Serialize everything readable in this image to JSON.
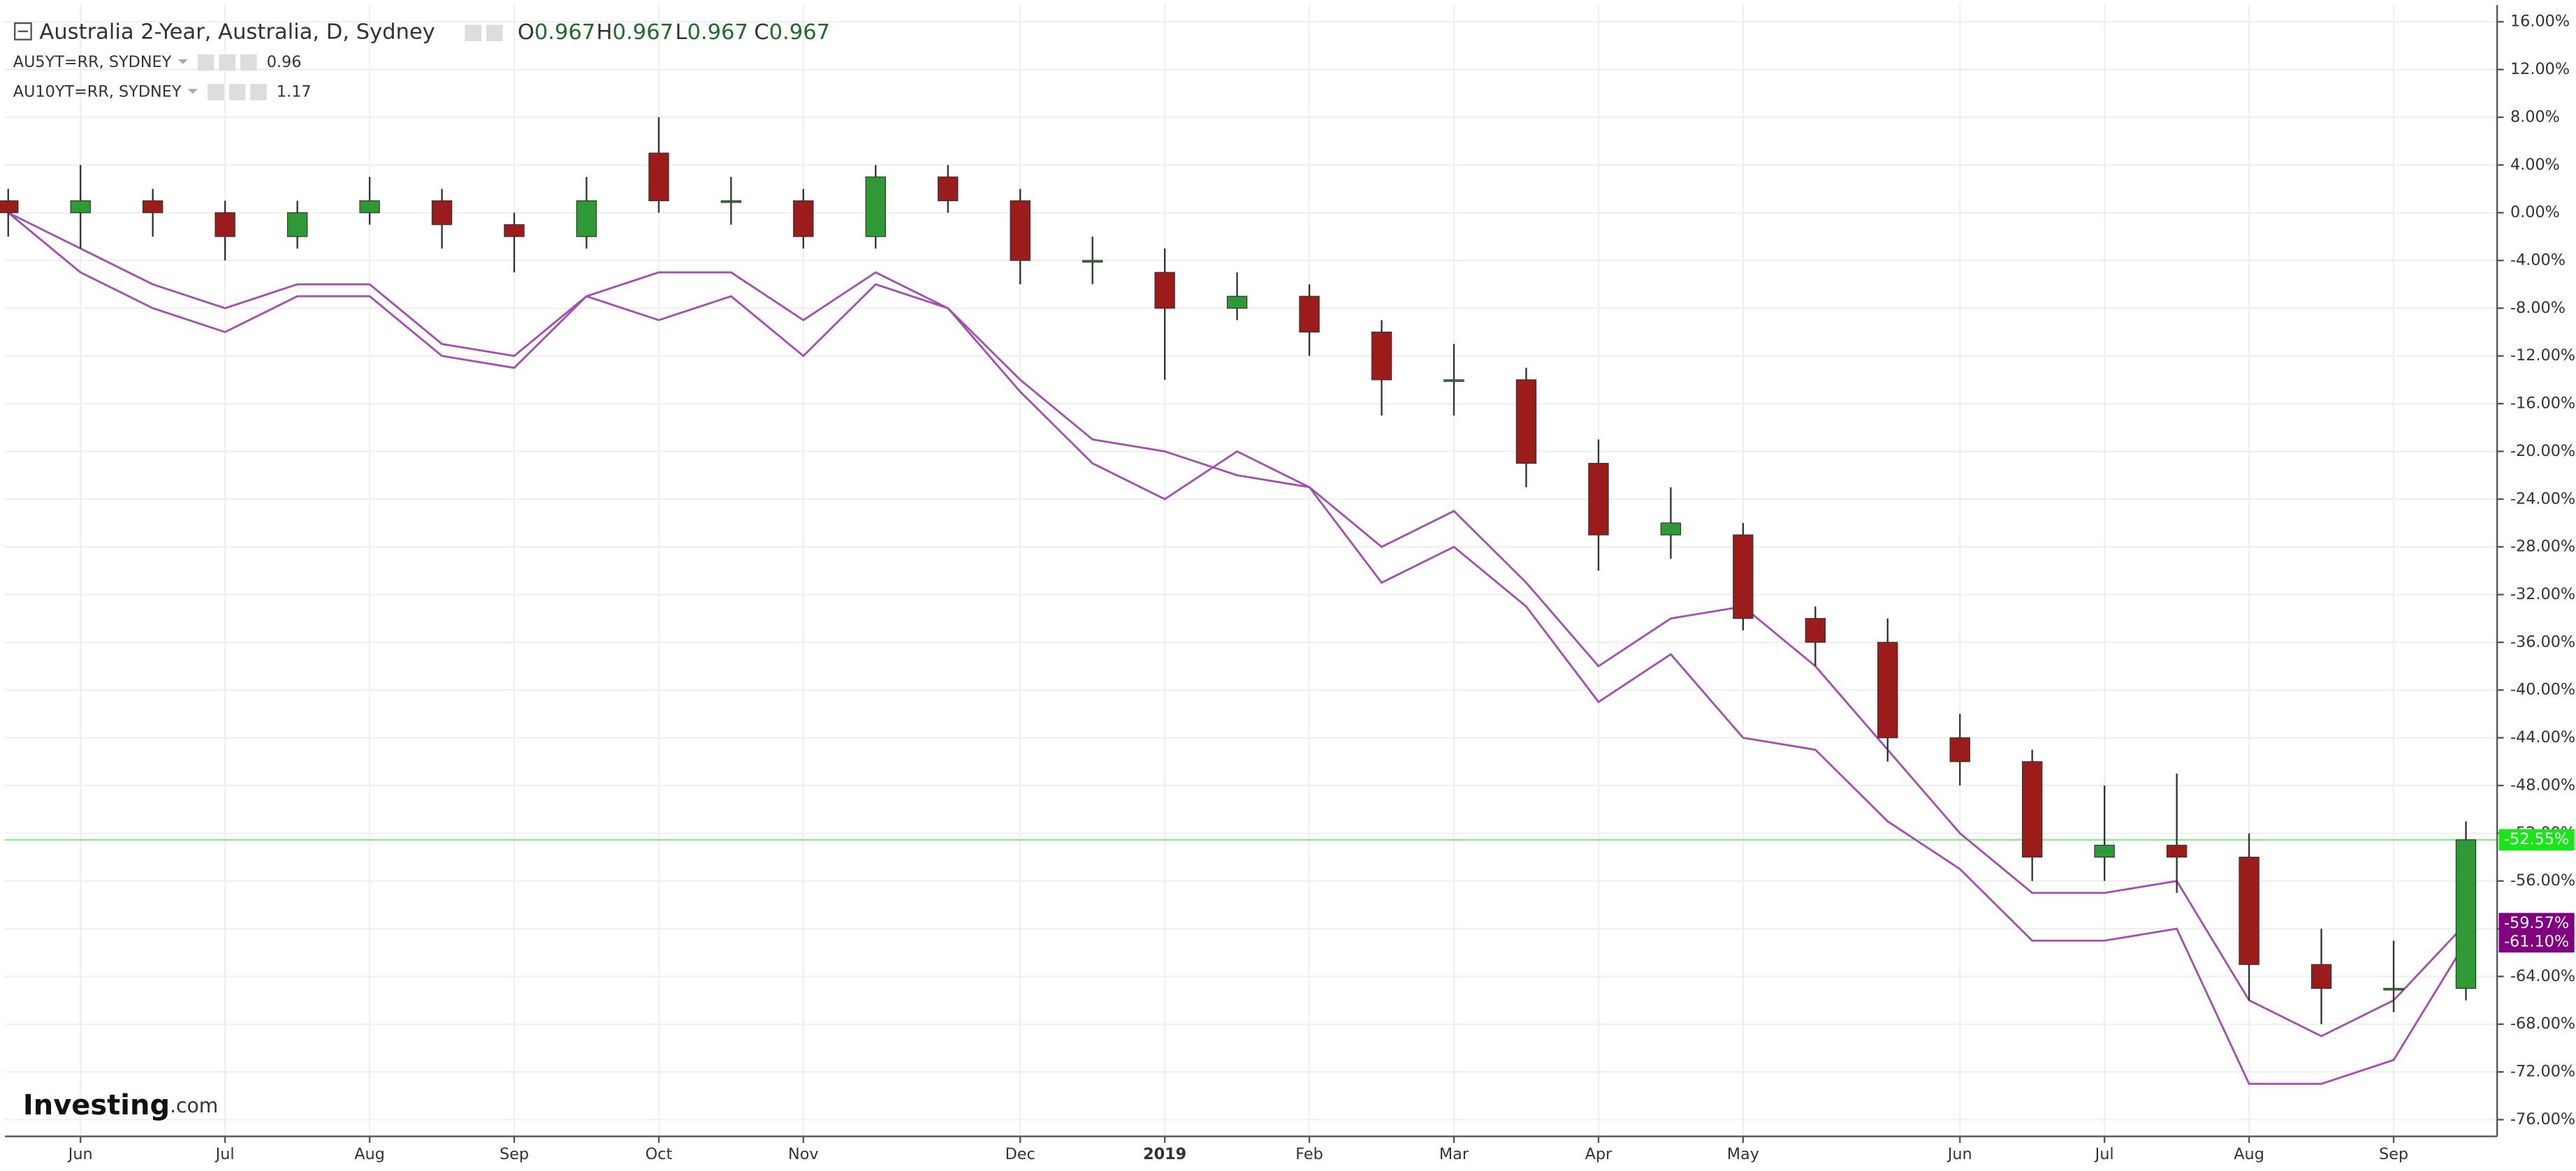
{
  "chart_data": {
    "type": "candlestick",
    "title": "Australia 2-Year, Australia, D, Sydney",
    "ohlc_labels": [
      "O",
      "H",
      "L",
      "C"
    ],
    "ohlc_values": [
      0.967,
      0.967,
      0.967,
      0.967
    ],
    "categories": [
      null,
      "Jun",
      null,
      "Jul",
      null,
      "Aug",
      null,
      "Sep",
      null,
      "Oct",
      null,
      "Nov",
      null,
      null,
      "Dec",
      null,
      "2019",
      null,
      "Feb",
      null,
      "Mar",
      null,
      "Apr",
      null,
      "May",
      null,
      null,
      "Jun",
      null,
      "Jul",
      null,
      "Aug",
      null,
      "Sep",
      null
    ],
    "ohlc": {
      "up_color": "#2f9a35",
      "down_color": "#9c1c1c",
      "price_line_color": "#8ee88e",
      "tag_color": "#19e619",
      "last_label": "-52.55%",
      "open": [
        1,
        0,
        1,
        0,
        -2,
        0,
        1,
        -1,
        -2,
        5,
        1,
        1,
        -2,
        3,
        1,
        -4,
        -5,
        -8,
        -7,
        -10,
        -14,
        -14,
        -21,
        -27,
        -27,
        -34,
        -36,
        -44,
        -46,
        -54,
        -53,
        -54,
        -63,
        -65,
        -65
      ],
      "high": [
        2,
        4,
        2,
        1,
        1,
        3,
        2,
        0,
        3,
        8,
        3,
        2,
        4,
        4,
        2,
        -2,
        -3,
        -5,
        -6,
        -9,
        -11,
        -13,
        -19,
        -23,
        -26,
        -33,
        -34,
        -42,
        -45,
        -48,
        -47,
        -52,
        -60,
        -61,
        -51
      ],
      "low": [
        -2,
        -3,
        -2,
        -4,
        -3,
        -1,
        -3,
        -5,
        -3,
        0,
        -1,
        -3,
        -3,
        0,
        -6,
        -6,
        -14,
        -9,
        -12,
        -17,
        -17,
        -23,
        -30,
        -29,
        -35,
        -38,
        -46,
        -48,
        -56,
        -56,
        -57,
        -66,
        -68,
        -67,
        -66
      ],
      "close": [
        0,
        1,
        0,
        -2,
        0,
        1,
        -1,
        -2,
        1,
        1,
        1,
        -2,
        3,
        1,
        -4,
        -4,
        -8,
        -7,
        -10,
        -14,
        -14,
        -21,
        -27,
        -26,
        -34,
        -36,
        -44,
        -46,
        -54,
        -53,
        -54,
        -63,
        -65,
        -65,
        -52.55
      ]
    },
    "series": [
      {
        "name": "AU5YT=RR, SYDNEY",
        "current": 0.96,
        "color": "#a24fb0",
        "tag_color": "#800080",
        "last_label": "-59.57%",
        "values": [
          0,
          -3,
          -6,
          -8,
          -6,
          -6,
          -11,
          -12,
          -7,
          -5,
          -5,
          -9,
          -5,
          -8,
          -14,
          -19,
          -20,
          -22,
          -23,
          -28,
          -25,
          -31,
          -38,
          -34,
          -33,
          -38,
          -45,
          -52,
          -57,
          -57,
          -56,
          -66,
          -69,
          -66,
          -59.57
        ]
      },
      {
        "name": "AU10YT=RR, SYDNEY",
        "current": 1.17,
        "color": "#a24fb0",
        "tag_color": "#800080",
        "last_label": "-61.10%",
        "values": [
          0,
          -5,
          -8,
          -10,
          -7,
          -7,
          -12,
          -13,
          -7,
          -9,
          -7,
          -12,
          -6,
          -8,
          -15,
          -21,
          -24,
          -20,
          -23,
          -31,
          -28,
          -33,
          -41,
          -37,
          -44,
          -45,
          -51,
          -55,
          -61,
          -61,
          -60,
          -73,
          -73,
          -71,
          -61.1
        ]
      }
    ],
    "ylim": [
      -77.4,
      17.4
    ],
    "yticks": [
      {
        "value": 16,
        "label": "16.00%"
      },
      {
        "value": 12,
        "label": "12.00%"
      },
      {
        "value": 8,
        "label": "8.00%"
      },
      {
        "value": 4,
        "label": "4.00%"
      },
      {
        "value": 0,
        "label": "0.00%"
      },
      {
        "value": -4,
        "label": "-4.00%"
      },
      {
        "value": -8,
        "label": "-8.00%"
      },
      {
        "value": -12,
        "label": "-12.00%"
      },
      {
        "value": -16,
        "label": "-16.00%"
      },
      {
        "value": -20,
        "label": "-20.00%"
      },
      {
        "value": -24,
        "label": "-24.00%"
      },
      {
        "value": -28,
        "label": "-28.00%"
      },
      {
        "value": -32,
        "label": "-32.00%"
      },
      {
        "value": -36,
        "label": "-36.00%"
      },
      {
        "value": -40,
        "label": "-40.00%"
      },
      {
        "value": -44,
        "label": "-44.00%"
      },
      {
        "value": -48,
        "label": "-48.00%"
      },
      {
        "value": -52,
        "label": "-52.00%"
      },
      {
        "value": -56,
        "label": "-56.00%"
      },
      {
        "value": -60,
        "label": "-60.00%"
      },
      {
        "value": -64,
        "label": "-64.00%"
      },
      {
        "value": -68,
        "label": "-68.00%"
      },
      {
        "value": -72,
        "label": "-72.00%"
      },
      {
        "value": -76,
        "label": "-76.00%"
      }
    ],
    "grid": true
  },
  "brand": {
    "name": "Investing",
    "suffix": ".com"
  }
}
